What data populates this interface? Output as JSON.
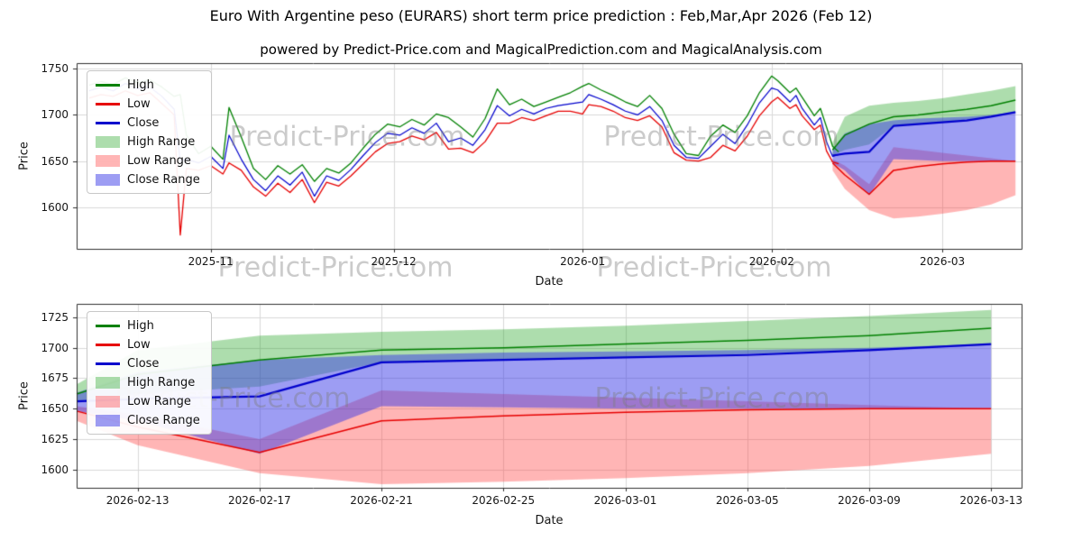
{
  "figure": {
    "title": "Euro With Argentine peso (EURARS) short term price prediction : Feb,Mar,Apr 2026 (Feb 12)",
    "subtitle": "powered by Predict-Price.com and MagicalPrediction.com and MagicalAnalysis.com",
    "watermark_text": "Predict-Price.com",
    "colors": {
      "high_line": "#008000",
      "low_line": "#e60000",
      "close_line": "#0000cc",
      "high_range_fill": "rgba(0,150,0,0.32)",
      "low_range_fill": "rgba(255,60,60,0.38)",
      "close_range_fill": "rgba(50,50,230,0.48)",
      "grid": "#d9d9d9",
      "spine": "#2f2f2f"
    }
  },
  "chart_data": {
    "type": "line",
    "legend": [
      {
        "label": "High",
        "swatch": "line",
        "color": "#008000"
      },
      {
        "label": "Low",
        "swatch": "line",
        "color": "#e60000"
      },
      {
        "label": "Close",
        "swatch": "line",
        "color": "#0000cc"
      },
      {
        "label": "High Range",
        "swatch": "patch",
        "color": "rgba(0,150,0,0.32)"
      },
      {
        "label": "Low Range",
        "swatch": "patch",
        "color": "rgba(255,60,60,0.38)"
      },
      {
        "label": "Close Range",
        "swatch": "patch",
        "color": "rgba(50,50,230,0.48)"
      }
    ],
    "charts": [
      {
        "name": "history-with-forecast",
        "xlabel": "Date",
        "ylabel": "Price",
        "xlim": [
          "2025-10-10",
          "2026-03-14"
        ],
        "ylim": [
          1555,
          1756
        ],
        "grid": true,
        "legend_position": "upper-left",
        "show_historical": true,
        "xticks": [
          {
            "value": "2025-11-01",
            "label": "2025-11"
          },
          {
            "value": "2025-12-01",
            "label": "2025-12"
          },
          {
            "value": "2026-01-01",
            "label": "2026-01"
          },
          {
            "value": "2026-02-01",
            "label": "2026-02"
          },
          {
            "value": "2026-03-01",
            "label": "2026-03"
          }
        ],
        "yticks": [
          1600,
          1650,
          1700,
          1750
        ]
      },
      {
        "name": "forecast-zoom",
        "xlabel": "Date",
        "ylabel": "Price",
        "xlim": [
          "2026-02-11",
          "2026-03-14"
        ],
        "ylim": [
          1585,
          1736
        ],
        "grid": true,
        "legend_position": "upper-left",
        "show_historical": false,
        "xticks": [
          {
            "value": "2026-02-13",
            "label": "2026-02-13"
          },
          {
            "value": "2026-02-17",
            "label": "2026-02-17"
          },
          {
            "value": "2026-02-21",
            "label": "2026-02-21"
          },
          {
            "value": "2026-02-25",
            "label": "2026-02-25"
          },
          {
            "value": "2026-03-01",
            "label": "2026-03-01"
          },
          {
            "value": "2026-03-05",
            "label": "2026-03-05"
          },
          {
            "value": "2026-03-09",
            "label": "2026-03-09"
          },
          {
            "value": "2026-03-13",
            "label": "2026-03-13"
          }
        ],
        "yticks": [
          1600,
          1625,
          1650,
          1675,
          1700,
          1725
        ]
      }
    ],
    "series": {
      "historical": {
        "dates": [
          "2025-10-12",
          "2025-10-14",
          "2025-10-16",
          "2025-10-18",
          "2025-10-20",
          "2025-10-22",
          "2025-10-24",
          "2025-10-26",
          "2025-10-27",
          "2025-10-28",
          "2025-10-30",
          "2025-11-01",
          "2025-11-03",
          "2025-11-04",
          "2025-11-06",
          "2025-11-08",
          "2025-11-10",
          "2025-11-12",
          "2025-11-14",
          "2025-11-16",
          "2025-11-18",
          "2025-11-20",
          "2025-11-22",
          "2025-11-24",
          "2025-11-26",
          "2025-11-28",
          "2025-11-30",
          "2025-12-02",
          "2025-12-04",
          "2025-12-06",
          "2025-12-08",
          "2025-12-10",
          "2025-12-12",
          "2025-12-14",
          "2025-12-16",
          "2025-12-18",
          "2025-12-20",
          "2025-12-22",
          "2025-12-24",
          "2025-12-26",
          "2025-12-28",
          "2025-12-30",
          "2026-01-01",
          "2026-01-02",
          "2026-01-04",
          "2026-01-06",
          "2026-01-08",
          "2026-01-10",
          "2026-01-12",
          "2026-01-14",
          "2026-01-16",
          "2026-01-18",
          "2026-01-20",
          "2026-01-22",
          "2026-01-24",
          "2026-01-26",
          "2026-01-28",
          "2026-01-30",
          "2026-02-01",
          "2026-02-02",
          "2026-02-04",
          "2026-02-05",
          "2026-02-06",
          "2026-02-08",
          "2026-02-09",
          "2026-02-10",
          "2026-02-11",
          "2026-02-12"
        ],
        "high": [
          1732,
          1736,
          1733,
          1740,
          1735,
          1738,
          1730,
          1720,
          1722,
          1678,
          1658,
          1666,
          1652,
          1708,
          1676,
          1642,
          1630,
          1645,
          1636,
          1646,
          1628,
          1642,
          1637,
          1648,
          1664,
          1679,
          1690,
          1687,
          1695,
          1689,
          1701,
          1697,
          1687,
          1676,
          1696,
          1728,
          1711,
          1717,
          1709,
          1714,
          1719,
          1724,
          1731,
          1734,
          1727,
          1721,
          1714,
          1709,
          1721,
          1707,
          1679,
          1658,
          1656,
          1677,
          1689,
          1681,
          1699,
          1724,
          1742,
          1737,
          1724,
          1729,
          1719,
          1699,
          1707,
          1687,
          1666,
          1660
        ],
        "low": [
          1718,
          1722,
          1720,
          1726,
          1721,
          1724,
          1712,
          1700,
          1570,
          1642,
          1640,
          1645,
          1636,
          1648,
          1640,
          1622,
          1612,
          1626,
          1616,
          1630,
          1605,
          1627,
          1623,
          1634,
          1647,
          1660,
          1669,
          1671,
          1677,
          1673,
          1681,
          1663,
          1664,
          1659,
          1671,
          1691,
          1691,
          1697,
          1694,
          1699,
          1704,
          1704,
          1701,
          1711,
          1709,
          1704,
          1697,
          1694,
          1699,
          1687,
          1659,
          1651,
          1650,
          1654,
          1667,
          1661,
          1677,
          1699,
          1714,
          1719,
          1707,
          1711,
          1699,
          1684,
          1689,
          1661,
          1649,
          1647
        ],
        "close": [
          1726,
          1730,
          1726,
          1734,
          1728,
          1730,
          1720,
          1706,
          1650,
          1652,
          1648,
          1655,
          1642,
          1678,
          1652,
          1630,
          1618,
          1634,
          1624,
          1638,
          1612,
          1634,
          1629,
          1641,
          1656,
          1670,
          1680,
          1678,
          1686,
          1680,
          1691,
          1671,
          1675,
          1667,
          1684,
          1710,
          1699,
          1706,
          1701,
          1707,
          1710,
          1712,
          1714,
          1722,
          1717,
          1711,
          1704,
          1700,
          1709,
          1694,
          1667,
          1654,
          1653,
          1666,
          1679,
          1669,
          1689,
          1713,
          1729,
          1727,
          1714,
          1721,
          1707,
          1689,
          1697,
          1671,
          1655,
          1657
        ]
      },
      "forecast": {
        "dates": [
          "2026-02-11",
          "2026-02-13",
          "2026-02-17",
          "2026-02-21",
          "2026-02-25",
          "2026-03-01",
          "2026-03-05",
          "2026-03-09",
          "2026-03-13"
        ],
        "high": [
          1662,
          1678,
          1690,
          1698,
          1700,
          1703,
          1706,
          1710,
          1716
        ],
        "low": [
          1648,
          1635,
          1614,
          1640,
          1644,
          1647,
          1649,
          1650,
          1650
        ],
        "close": [
          1656,
          1658,
          1660,
          1688,
          1690,
          1692,
          1694,
          1698,
          1703
        ],
        "high_range": {
          "upper": [
            1670,
            1698,
            1710,
            1713,
            1715,
            1718,
            1722,
            1726,
            1731
          ],
          "lower": [
            1656,
            1662,
            1668,
            1688,
            1690,
            1692,
            1695,
            1698,
            1702
          ]
        },
        "close_range": {
          "upper": [
            1663,
            1680,
            1690,
            1694,
            1696,
            1697,
            1698,
            1700,
            1703
          ],
          "lower": [
            1648,
            1640,
            1613,
            1652,
            1651,
            1650,
            1650,
            1650,
            1650
          ]
        },
        "low_range": {
          "upper": [
            1652,
            1645,
            1625,
            1665,
            1662,
            1659,
            1656,
            1653,
            1650
          ],
          "lower": [
            1640,
            1620,
            1597,
            1588,
            1590,
            1593,
            1597,
            1603,
            1613
          ]
        }
      }
    }
  }
}
